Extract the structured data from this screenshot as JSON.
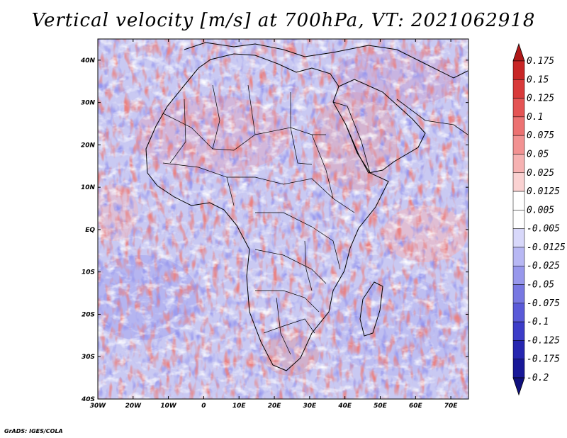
{
  "map": {
    "title": "Vertical velocity [m/s] at 700hPa, VT: 2021062918",
    "lat_ticks": [
      "40N",
      "30N",
      "20N",
      "10N",
      "EQ",
      "10S",
      "20S",
      "30S",
      "40S"
    ],
    "lon_ticks": [
      "30W",
      "20W",
      "10W",
      "0",
      "10E",
      "20E",
      "30E",
      "40E",
      "50E",
      "60E",
      "70E"
    ],
    "lon_range": [
      -30,
      75
    ],
    "lat_range": [
      -40,
      45
    ],
    "colorbar": {
      "levels": [
        "0.175",
        "0.15",
        "0.125",
        "0.1",
        "0.075",
        "0.05",
        "0.025",
        "0.0125",
        "0.005",
        "-0.005",
        "-0.0125",
        "-0.025",
        "-0.05",
        "-0.075",
        "-0.1",
        "-0.125",
        "-0.175",
        "-0.2"
      ],
      "colors": [
        "#b01818",
        "#c82626",
        "#d83a3a",
        "#e45454",
        "#ec7272",
        "#f29292",
        "#f6b2b2",
        "#fad2d2",
        "#ffffff",
        "#ffffff",
        "#d8d8fa",
        "#b8b8f4",
        "#9898ec",
        "#7878e2",
        "#5a5ad8",
        "#3c3cc8",
        "#2626b0",
        "#181898",
        "#10107e"
      ]
    },
    "credit": "GrADS: IGES/COLA"
  }
}
